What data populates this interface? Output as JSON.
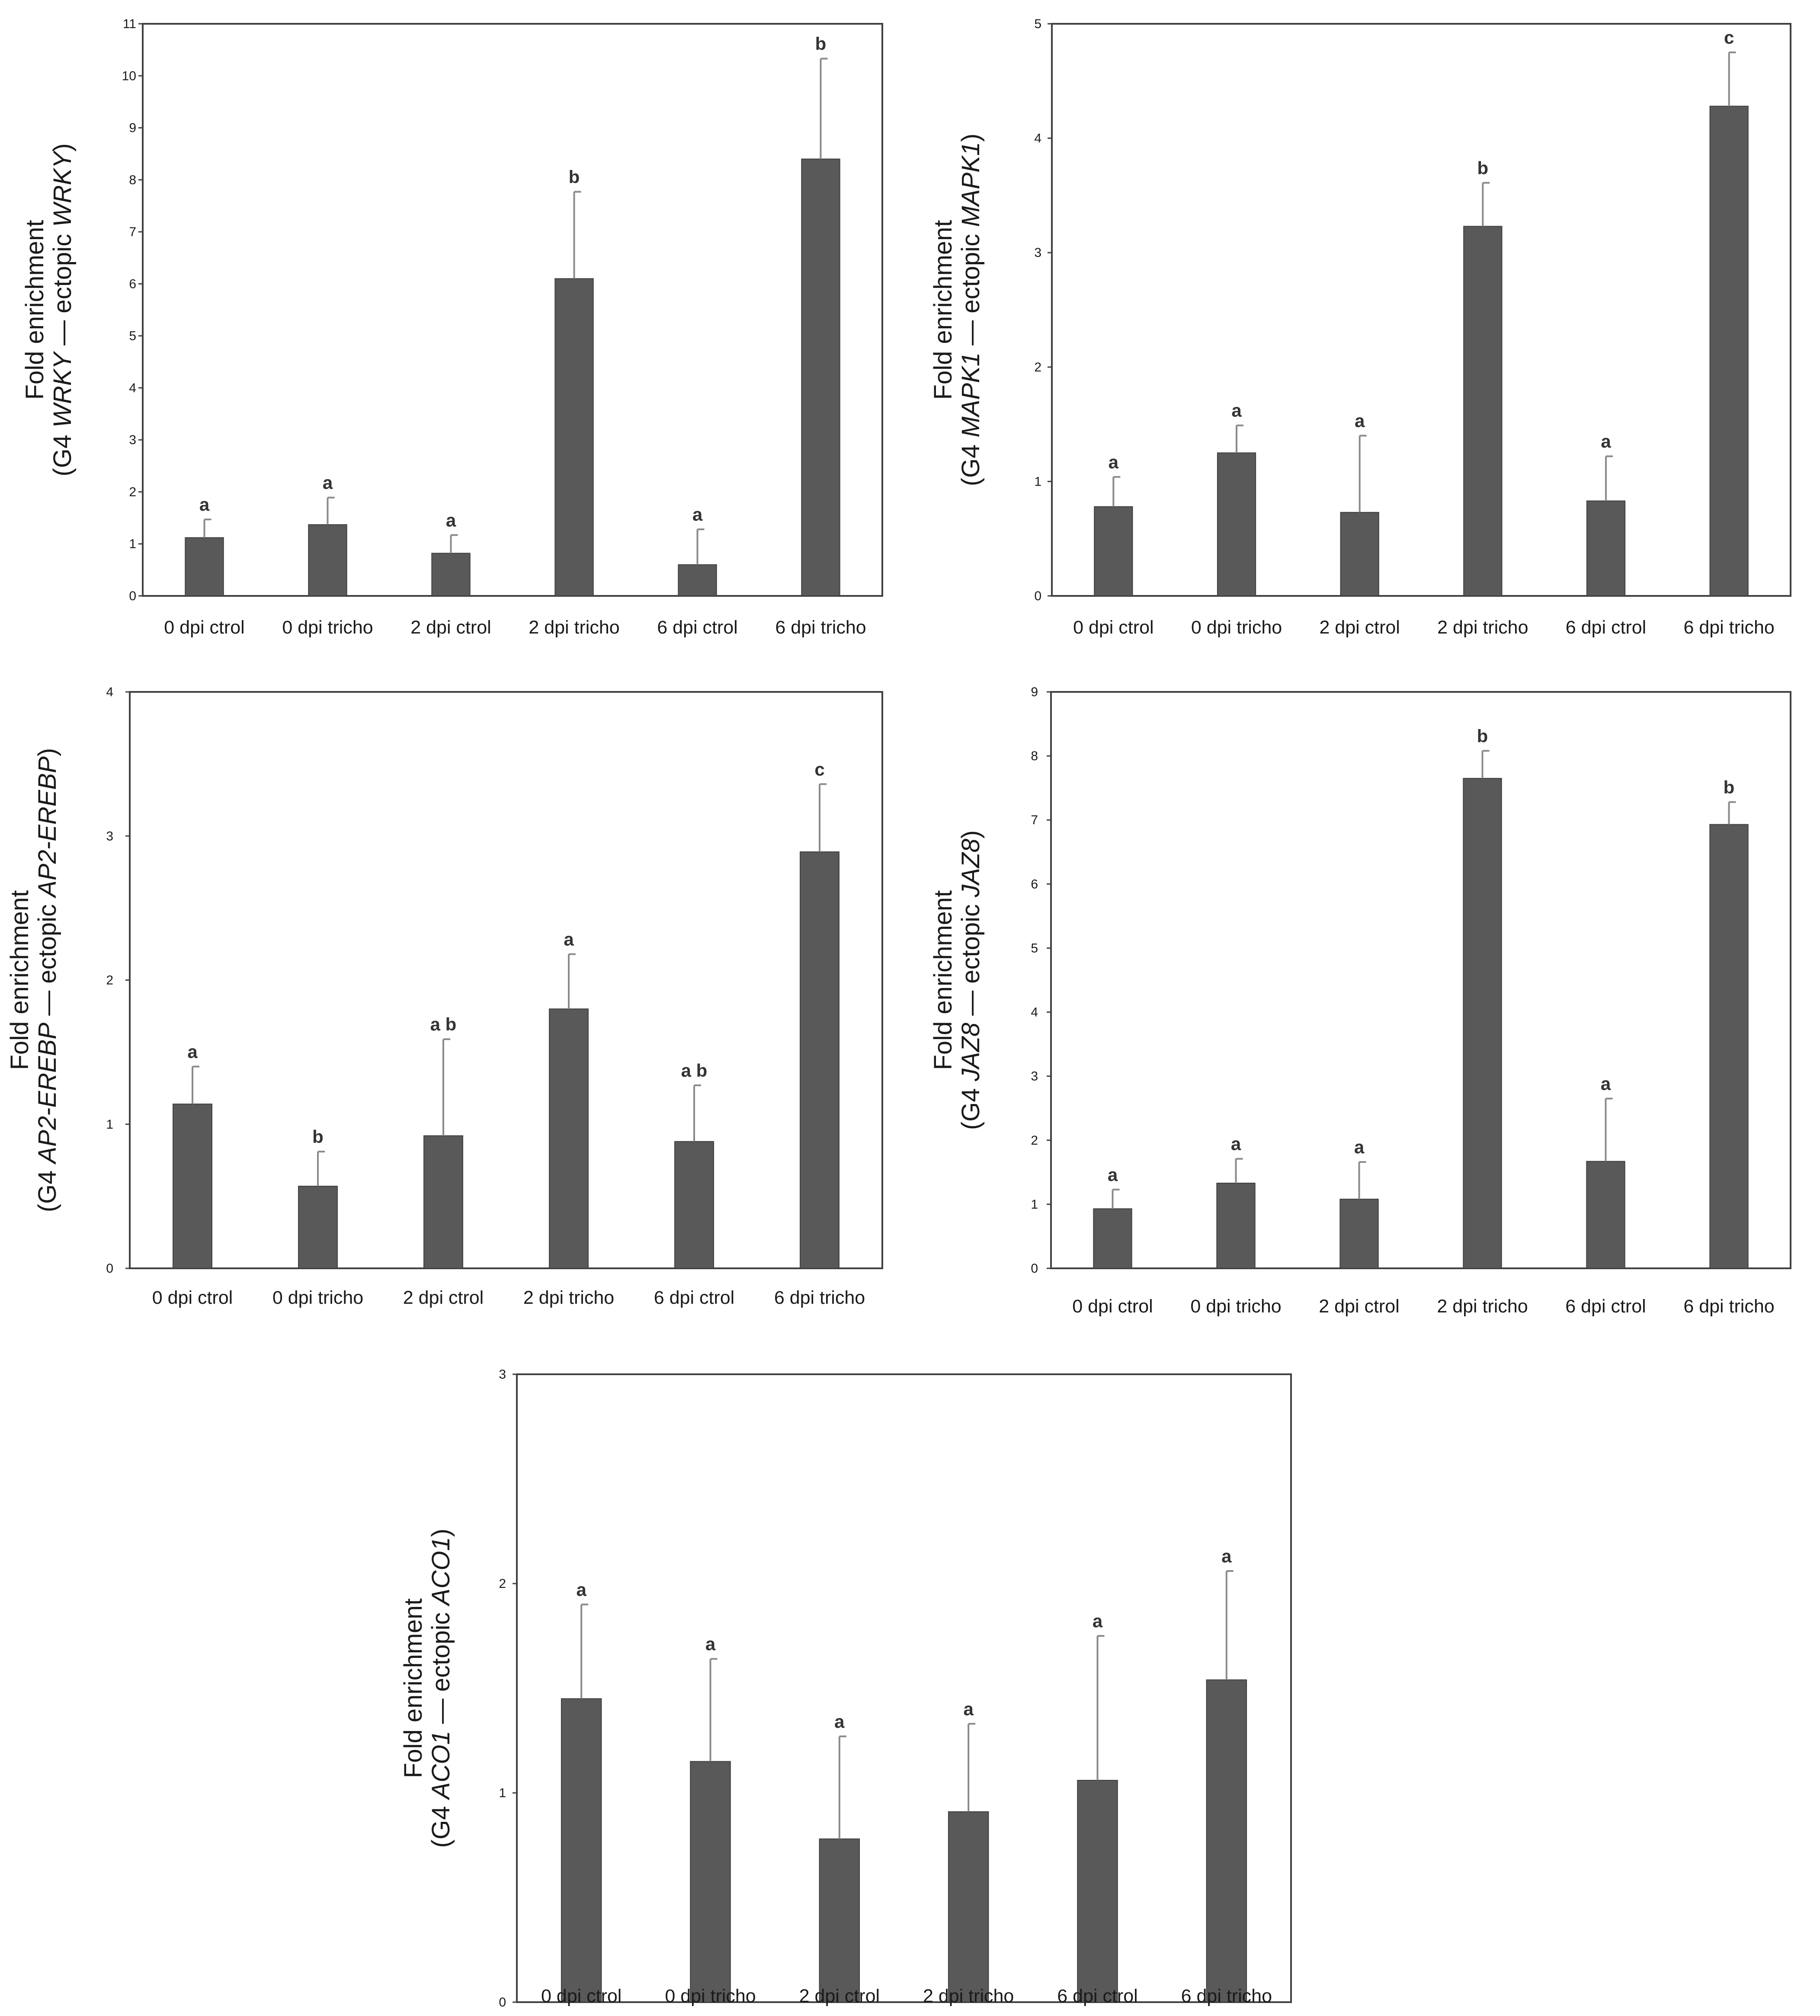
{
  "colors": {
    "bar": "#595959",
    "bar_edge": "#3f3f3f",
    "error": "#8a8a8a",
    "frame": "#404040"
  },
  "chart_data": [
    {
      "type": "bar",
      "ylabel_line1": "Fold enrichment",
      "ylabel_line2": {
        "pre": "(G4 ",
        "gene": "WRKY",
        "mid": " — ectopic ",
        "gene2": "WRKY",
        "post": ")"
      },
      "categories": [
        "0 dpi ctrol",
        "0 dpi tricho",
        "2 dpi ctrol",
        "2 dpi tricho",
        "6 dpi ctrol",
        "6 dpi tricho"
      ],
      "values": [
        1.12,
        1.37,
        0.82,
        6.1,
        0.6,
        8.4
      ],
      "errors": [
        0.35,
        0.52,
        0.35,
        1.67,
        0.68,
        1.93
      ],
      "significance": [
        "a",
        "a",
        "a",
        "b",
        "a",
        "b"
      ],
      "ylim": [
        0,
        11
      ],
      "yticks": [
        0,
        1,
        2,
        3,
        4,
        5,
        6,
        7,
        8,
        9,
        10,
        11
      ]
    },
    {
      "type": "bar",
      "ylabel_line1": "Fold enrichment",
      "ylabel_line2": {
        "pre": "(G4 ",
        "gene": "MAPK1",
        "mid": " — ectopic ",
        "gene2": "MAPK1",
        "post": ")"
      },
      "categories": [
        "0 dpi ctrol",
        "0 dpi tricho",
        "2 dpi ctrol",
        "2 dpi tricho",
        "6 dpi ctrol",
        "6 dpi tricho"
      ],
      "values": [
        0.78,
        1.25,
        0.73,
        3.23,
        0.83,
        4.28
      ],
      "errors": [
        0.26,
        0.24,
        0.67,
        0.38,
        0.39,
        0.47
      ],
      "significance": [
        "a",
        "a",
        "a",
        "b",
        "a",
        "c"
      ],
      "ylim": [
        0,
        5
      ],
      "yticks": [
        0,
        1,
        2,
        3,
        4,
        5
      ]
    },
    {
      "type": "bar",
      "ylabel_line1": "Fold enrichment",
      "ylabel_line2": {
        "pre": "(G4 ",
        "gene": "AP2-EREBP",
        "mid": " — ectopic ",
        "gene2": "AP2-EREBP",
        "post": ")"
      },
      "categories": [
        "0 dpi ctrol",
        "0 dpi tricho",
        "2 dpi ctrol",
        "2 dpi tricho",
        "6 dpi ctrol",
        "6 dpi tricho"
      ],
      "values": [
        1.14,
        0.57,
        0.92,
        1.8,
        0.88,
        2.89
      ],
      "errors": [
        0.26,
        0.24,
        0.67,
        0.38,
        0.39,
        0.47
      ],
      "significance": [
        "a",
        "b",
        "a b",
        "a",
        "a b",
        "c"
      ],
      "ylim": [
        0,
        4
      ],
      "yticks": [
        0,
        1,
        2,
        3,
        4
      ]
    },
    {
      "type": "bar",
      "ylabel_line1": "Fold enrichment",
      "ylabel_line2": {
        "pre": "(G4 ",
        "gene": "JAZ8",
        "mid": " — ectopic ",
        "gene2": "JAZ8",
        "post": ")"
      },
      "categories": [
        "0 dpi ctrol",
        "0 dpi tricho",
        "2 dpi ctrol",
        "2 dpi tricho",
        "6 dpi ctrol",
        "6 dpi tricho"
      ],
      "values": [
        0.93,
        1.33,
        1.08,
        7.65,
        1.67,
        6.93
      ],
      "errors": [
        0.3,
        0.38,
        0.58,
        0.43,
        0.98,
        0.35
      ],
      "significance": [
        "a",
        "a",
        "a",
        "b",
        "a",
        "b"
      ],
      "ylim": [
        0,
        9
      ],
      "yticks": [
        0,
        1,
        2,
        3,
        4,
        5,
        6,
        7,
        8,
        9
      ]
    },
    {
      "type": "bar",
      "ylabel_line1": "Fold enrichment",
      "ylabel_line2": {
        "pre": "(G4 ",
        "gene": "ACO1",
        "mid": " — ectopic ",
        "gene2": "ACO1",
        "post": ")"
      },
      "categories": [
        "0 dpi ctrol",
        "0 dpi tricho",
        "2 dpi ctrol",
        "2 dpi tricho",
        "6 dpi ctrol",
        "6 dpi tricho"
      ],
      "values": [
        1.45,
        1.15,
        0.78,
        0.91,
        1.06,
        1.54
      ],
      "errors": [
        0.45,
        0.49,
        0.49,
        0.42,
        0.69,
        0.52
      ],
      "significance": [
        "a",
        "a",
        "a",
        "a",
        "a",
        "a"
      ],
      "ylim": [
        0,
        3
      ],
      "yticks": [
        0,
        1,
        2,
        3
      ]
    }
  ]
}
